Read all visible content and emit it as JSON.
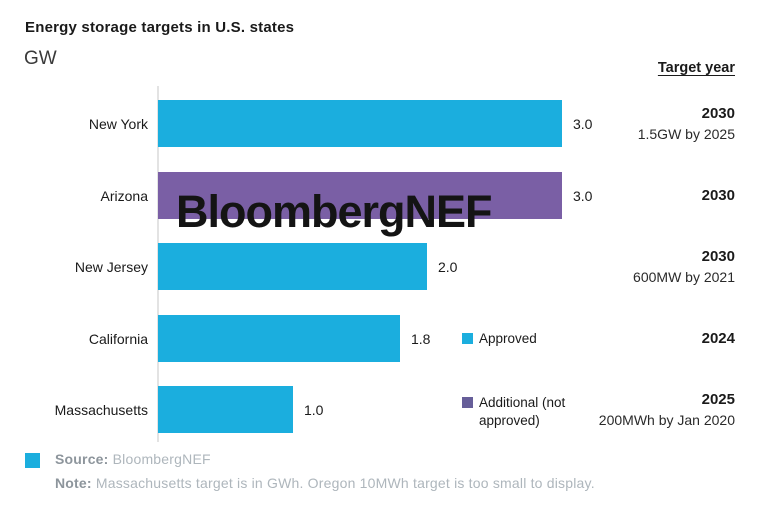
{
  "header": {
    "title": "Energy storage targets in U.S. states",
    "unit_label": "GW",
    "target_year_header": "Target year"
  },
  "watermark": "BloombergNEF",
  "colors": {
    "approved": "#1BAEDE",
    "additional": "#7A5FA5",
    "legend_additional": "#665E99",
    "axis_line": "#E3E3E3"
  },
  "chart_data": {
    "type": "bar",
    "orientation": "horizontal",
    "title": "Energy storage targets in U.S. states",
    "unit": "GW",
    "xlim": [
      0,
      3
    ],
    "grid": false,
    "legend_position": "right-inside",
    "categories": [
      "New York",
      "Arizona",
      "New Jersey",
      "California",
      "Massachusetts"
    ],
    "series": [
      {
        "name": "Approved",
        "color": "#1BAEDE",
        "values": [
          3.0,
          null,
          2.0,
          1.8,
          1.0
        ]
      },
      {
        "name": "Additional (not approved)",
        "color": "#7A5FA5",
        "values": [
          null,
          3.0,
          null,
          null,
          null
        ]
      }
    ],
    "rows": [
      {
        "state": "New York",
        "value": 3.0,
        "value_label": "3.0",
        "series": "approved",
        "target_year": "2030",
        "target_note": "1.5GW by 2025"
      },
      {
        "state": "Arizona",
        "value": 3.0,
        "value_label": "3.0",
        "series": "additional",
        "target_year": "2030",
        "target_note": ""
      },
      {
        "state": "New Jersey",
        "value": 2.0,
        "value_label": "2.0",
        "series": "approved",
        "target_year": "2030",
        "target_note": "600MW by 2021"
      },
      {
        "state": "California",
        "value": 1.8,
        "value_label": "1.8",
        "series": "approved",
        "target_year": "2024",
        "target_note": ""
      },
      {
        "state": "Massachusetts",
        "value": 1.0,
        "value_label": "1.0",
        "series": "approved",
        "target_year": "2025",
        "target_note": "200MWh by Jan 2020"
      }
    ],
    "legend": [
      {
        "label": "Approved",
        "lines": [
          "Approved"
        ],
        "color": "#1BAEDE",
        "series": "approved"
      },
      {
        "label": "Additional (not approved)",
        "lines": [
          "Additional (not",
          "approved)"
        ],
        "color": "#665E99",
        "series": "additional"
      }
    ]
  },
  "footer": {
    "source_label": "Source:",
    "source_value": "BloombergNEF",
    "note_label": "Note:",
    "note_value": "Massachusetts target is in GWh. Oregon 10MWh target is too small to display."
  }
}
